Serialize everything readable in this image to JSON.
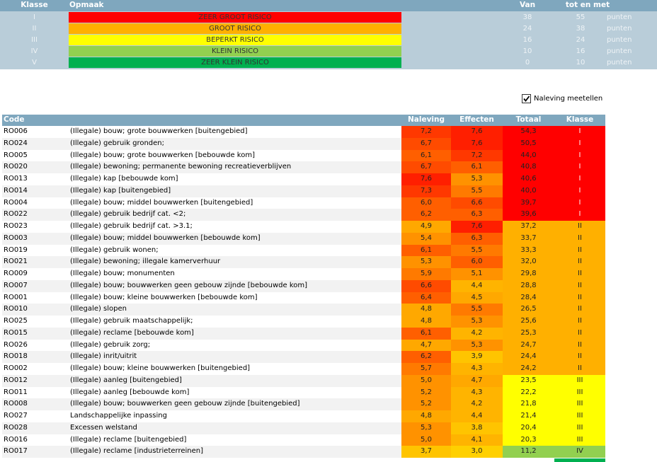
{
  "legend": {
    "columns": [
      "Klasse",
      "Opmaak",
      "Van",
      "tot en met"
    ],
    "classes": [
      {
        "klasse": "I",
        "label": "ZEER GROOT RISICO",
        "van": "38",
        "tot": "55",
        "unit": "punten",
        "color": "#ff0000"
      },
      {
        "klasse": "II",
        "label": "GROOT RISICO",
        "van": "24",
        "tot": "38",
        "unit": "punten",
        "color": "#ffb000"
      },
      {
        "klasse": "III",
        "label": "BEPERKT RISICO",
        "van": "16",
        "tot": "24",
        "unit": "punten",
        "color": "#ffff00"
      },
      {
        "klasse": "IV",
        "label": "KLEIN RISICO",
        "van": "10",
        "tot": "16",
        "unit": "punten",
        "color": "#92d050"
      },
      {
        "klasse": "V",
        "label": "ZEER KLEIN RISICO",
        "van": "0",
        "tot": "10",
        "unit": "punten",
        "color": "#00b050"
      }
    ]
  },
  "checkbox": {
    "label": "Naleving meetellen",
    "checked": true
  },
  "table": {
    "columns": [
      "Code",
      "",
      "Naleving",
      "Effecten",
      "Totaal",
      "Klasse"
    ],
    "rows": [
      [
        "RO006",
        "(Illegale) bouw; grote bouwwerken [buitengebied]",
        "7,2",
        "7,6",
        "54,3",
        "I",
        "#ff3800",
        "#ff1f00",
        "#ff0000"
      ],
      [
        "RO024",
        "(Illegale) gebruik gronden;",
        "6,7",
        "7,6",
        "50,5",
        "I",
        "#ff4b00",
        "#ff1f00",
        "#ff0000"
      ],
      [
        "RO005",
        "(Illegale) bouw; grote bouwwerken [bebouwde kom]",
        "6,1",
        "7,2",
        "44,0",
        "I",
        "#ff5f00",
        "#ff3800",
        "#ff0000"
      ],
      [
        "RO020",
        "(Illegale) bewoning; permanente bewoning recreatieverblijven",
        "6,7",
        "6,1",
        "40,8",
        "I",
        "#ff4b00",
        "#ff5f00",
        "#ff0000"
      ],
      [
        "RO013",
        "(Illegale) kap [bebouwde kom]",
        "7,6",
        "5,3",
        "40,6",
        "I",
        "#ff1f00",
        "#ff9200",
        "#ff0000"
      ],
      [
        "RO014",
        "(Illegale) kap [buitengebied]",
        "7,3",
        "5,5",
        "40,0",
        "I",
        "#ff3800",
        "#ff7a00",
        "#ff0000"
      ],
      [
        "RO004",
        "(Illegale) bouw; middel bouwwerken [buitengebied]",
        "6,0",
        "6,6",
        "39,7",
        "I",
        "#ff5f00",
        "#ff4b00",
        "#ff0000"
      ],
      [
        "RO022",
        "(Illegale) gebruik bedrijf cat. <2;",
        "6,2",
        "6,3",
        "39,6",
        "I",
        "#ff5f00",
        "#ff5f00",
        "#ff0000"
      ],
      [
        "RO023",
        "(Illegale) gebruik bedrijf cat. >3.1;",
        "4,9",
        "7,6",
        "37,2",
        "II",
        "#ffa800",
        "#ff1f00",
        "#ffb000"
      ],
      [
        "RO003",
        "(Illegale) bouw; middel bouwwerken [bebouwde kom]",
        "5,4",
        "6,3",
        "33,7",
        "II",
        "#ff9200",
        "#ff5f00",
        "#ffb000"
      ],
      [
        "RO019",
        "(Illegale) gebruik wonen;",
        "6,1",
        "5,5",
        "33,3",
        "II",
        "#ff5f00",
        "#ff7a00",
        "#ffb000"
      ],
      [
        "RO021",
        "(Illegale) bewoning; illegale kamerverhuur",
        "5,3",
        "6,0",
        "32,0",
        "II",
        "#ff9200",
        "#ff5f00",
        "#ffb000"
      ],
      [
        "RO009",
        "(Illegale) bouw; monumenten",
        "5,9",
        "5,1",
        "29,8",
        "II",
        "#ff7a00",
        "#ff9200",
        "#ffb000"
      ],
      [
        "RO007",
        "(Illegale) bouw; bouwwerken geen gebouw zijnde [bebouwde kom]",
        "6,6",
        "4,4",
        "28,8",
        "II",
        "#ff4b00",
        "#ffb400",
        "#ffb000"
      ],
      [
        "RO001",
        "(Illegale) bouw; kleine bouwwerken [bebouwde kom]",
        "6,4",
        "4,5",
        "28,4",
        "II",
        "#ff5f00",
        "#ffa800",
        "#ffb000"
      ],
      [
        "RO010",
        "(Illegale) slopen",
        "4,8",
        "5,5",
        "26,5",
        "II",
        "#ffa800",
        "#ff7a00",
        "#ffb000"
      ],
      [
        "RO025",
        "(Illegale) gebruik maatschappelijk;",
        "4,8",
        "5,3",
        "25,6",
        "II",
        "#ffa800",
        "#ff9200",
        "#ffb000"
      ],
      [
        "RO015",
        "(Illegale) reclame [bebouwde kom]",
        "6,1",
        "4,2",
        "25,3",
        "II",
        "#ff5f00",
        "#ffb400",
        "#ffb000"
      ],
      [
        "RO026",
        "(Illegale) gebruik zorg;",
        "4,7",
        "5,3",
        "24,7",
        "II",
        "#ffa800",
        "#ff9200",
        "#ffb000"
      ],
      [
        "RO018",
        "(Illegale) inrit/uitrit",
        "6,2",
        "3,9",
        "24,4",
        "II",
        "#ff5f00",
        "#ffc400",
        "#ffb000"
      ],
      [
        "RO002",
        "(Illegale) bouw; kleine bouwwerken [buitengebied]",
        "5,7",
        "4,3",
        "24,2",
        "II",
        "#ff7a00",
        "#ffb400",
        "#ffb000"
      ],
      [
        "RO012",
        "(Illegale) aanleg [buitengebied]",
        "5,0",
        "4,7",
        "23,5",
        "III",
        "#ff9200",
        "#ffa800",
        "#ffff00"
      ],
      [
        "RO011",
        "(Illegale) aanleg [bebouwde kom]",
        "5,2",
        "4,3",
        "22,2",
        "III",
        "#ff9200",
        "#ffb400",
        "#ffff00"
      ],
      [
        "RO008",
        "(Illegale) bouw; bouwwerken geen gebouw zijnde [buitengebied]",
        "5,2",
        "4,2",
        "21,8",
        "III",
        "#ff9200",
        "#ffb400",
        "#ffff00"
      ],
      [
        "RO027",
        "Landschappelijke inpassing",
        "4,8",
        "4,4",
        "21,4",
        "III",
        "#ffa800",
        "#ffb400",
        "#ffff00"
      ],
      [
        "RO028",
        "Excessen welstand",
        "5,3",
        "3,8",
        "20,4",
        "III",
        "#ff9200",
        "#ffc400",
        "#ffff00"
      ],
      [
        "RO016",
        "(Illegale) reclame [buitengebied]",
        "5,0",
        "4,1",
        "20,3",
        "III",
        "#ff9200",
        "#ffb400",
        "#ffff00"
      ],
      [
        "RO017",
        "(Illegale) reclame [industrieterreinen]",
        "3,7",
        "3,0",
        "11,2",
        "IV",
        "#ffc400",
        "#ffd000",
        "#92d050"
      ]
    ]
  }
}
